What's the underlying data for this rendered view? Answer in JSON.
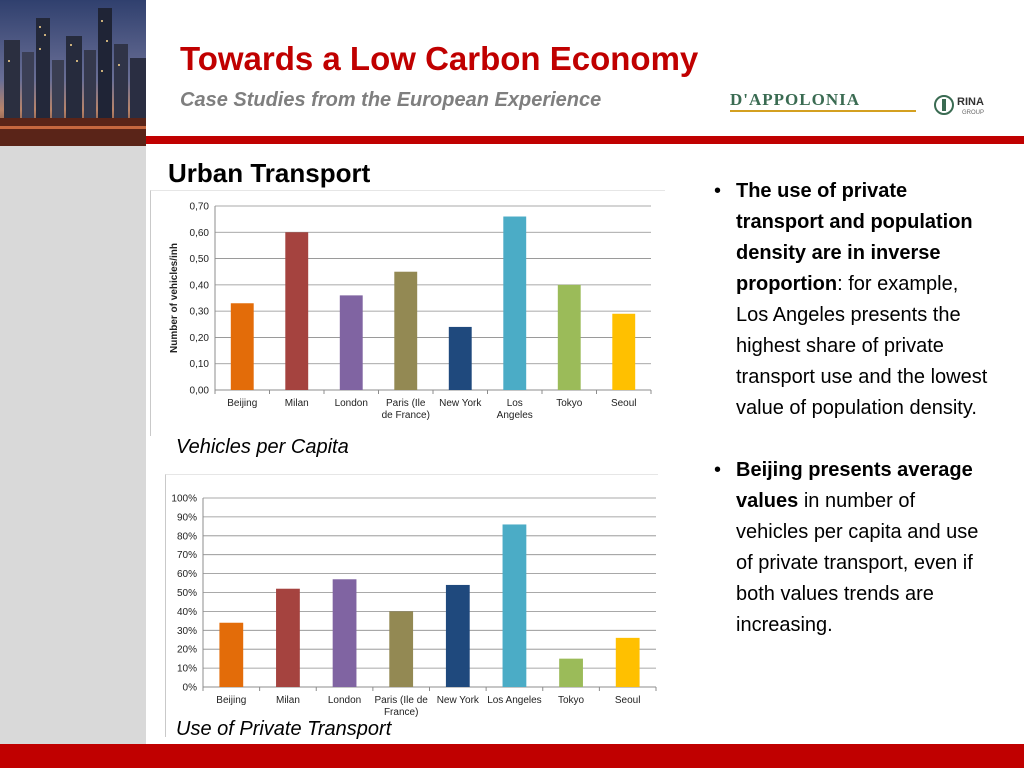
{
  "header": {
    "title": "Towards a Low Carbon Economy",
    "subtitle": "Case Studies from the European Experience",
    "logo_text": "D'APPOLONIA",
    "logo_partner": "RINA",
    "logo_partner_sub": "GROUP"
  },
  "section_title": "Urban Transport",
  "captions": {
    "chart1": "Vehicles per Capita",
    "chart2": "Use of Private Transport"
  },
  "bullets": [
    {
      "bold": "The use of private transport and population density are in inverse proportion",
      "text": ": for example, Los Angeles presents the highest share of private transport use and the lowest value of population density."
    },
    {
      "bold": "Beijing presents average values",
      "text": " in number of vehicles per capita and use of private transport, even if both values trends are  increasing."
    }
  ],
  "colors": {
    "accent": "#c00000",
    "subtitle_gray": "#7f7f7f",
    "sidebar_gray": "#d9d9d9"
  },
  "chart_data": [
    {
      "type": "bar",
      "ylabel": "Number of vehicles/inh",
      "categories": [
        [
          "Beijing"
        ],
        [
          "Milan"
        ],
        [
          "London"
        ],
        [
          "Paris (Ile",
          "de France)"
        ],
        [
          "New York"
        ],
        [
          "Los",
          "Angeles"
        ],
        [
          "Tokyo"
        ],
        [
          "Seoul"
        ]
      ],
      "values": [
        0.33,
        0.6,
        0.36,
        0.45,
        0.24,
        0.66,
        0.4,
        0.29
      ],
      "colors": [
        "#e36c09",
        "#a5433f",
        "#8064a2",
        "#938953",
        "#1f497d",
        "#4bacc6",
        "#9bbb59",
        "#ffc000"
      ],
      "ylim": [
        0,
        0.7
      ],
      "yticks": [
        "0,00",
        "0,10",
        "0,20",
        "0,30",
        "0,40",
        "0,50",
        "0,60",
        "0,70"
      ],
      "grid": true
    },
    {
      "type": "bar",
      "categories": [
        [
          "Beijing"
        ],
        [
          "Milan"
        ],
        [
          "London"
        ],
        [
          "Paris (Ile de",
          "France)"
        ],
        [
          "New York"
        ],
        [
          "Los Angeles"
        ],
        [
          "Tokyo"
        ],
        [
          "Seoul"
        ]
      ],
      "values": [
        34,
        52,
        57,
        40,
        54,
        86,
        15,
        26
      ],
      "colors": [
        "#e36c09",
        "#a5433f",
        "#8064a2",
        "#938953",
        "#1f497d",
        "#4bacc6",
        "#9bbb59",
        "#ffc000"
      ],
      "ylim": [
        0,
        100
      ],
      "yticks": [
        "0%",
        "10%",
        "20%",
        "30%",
        "40%",
        "50%",
        "60%",
        "70%",
        "80%",
        "90%",
        "100%"
      ],
      "grid": true
    }
  ]
}
